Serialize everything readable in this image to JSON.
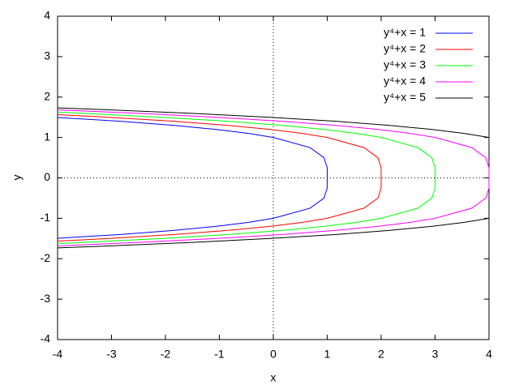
{
  "chart_data": {
    "type": "line",
    "x_label": "x",
    "y_label": "y",
    "xlim": [
      -4,
      4
    ],
    "ylim": [
      -4,
      4
    ],
    "xticks": [
      -4,
      -3,
      -2,
      -1,
      0,
      1,
      2,
      3,
      4
    ],
    "yticks": [
      -4,
      -3,
      -2,
      -1,
      0,
      1,
      2,
      3,
      4
    ],
    "zero_axes": true,
    "legend": "top-right",
    "series": [
      {
        "name": "y⁴+x = 1",
        "color": "#0000ff",
        "x": [
          -4,
          -2.84,
          -1.86,
          -1.07,
          -0.46,
          0,
          0.68,
          0.94,
          1.0,
          1,
          1.0,
          0.94,
          0.68,
          0,
          -0.46,
          -1.07,
          -1.86,
          -2.84,
          -4
        ],
        "values": [
          1.495,
          1.4,
          1.3,
          1.2,
          1.1,
          1.0,
          0.75,
          0.5,
          0.25,
          0,
          -0.25,
          -0.5,
          -0.75,
          -1.0,
          -1.1,
          -1.2,
          -1.3,
          -1.4,
          -1.495
        ]
      },
      {
        "name": "y⁴+x = 2",
        "color": "#ff0000",
        "x": [
          -4,
          -3.06,
          -1.84,
          -0.86,
          -0.07,
          0.54,
          1,
          1.68,
          1.94,
          2.0,
          2,
          2.0,
          1.94,
          1.68,
          1,
          0.54,
          -0.07,
          -0.86,
          -1.84,
          -3.06,
          -4
        ],
        "values": [
          1.565,
          1.5,
          1.4,
          1.3,
          1.2,
          1.1,
          1.0,
          0.75,
          0.5,
          0.25,
          0,
          -0.25,
          -0.5,
          -0.75,
          -1.0,
          -1.1,
          -1.2,
          -1.3,
          -1.4,
          -1.5,
          -1.565
        ]
      },
      {
        "name": "y⁴+x = 3",
        "color": "#00ff00",
        "x": [
          -4,
          -2.06,
          -0.84,
          0.14,
          0.93,
          1.54,
          2,
          2.68,
          2.94,
          3.0,
          3,
          3.0,
          2.94,
          2.68,
          2,
          1.54,
          0.93,
          0.14,
          -0.84,
          -2.06,
          -4
        ],
        "values": [
          1.627,
          1.5,
          1.4,
          1.3,
          1.2,
          1.1,
          1.0,
          0.75,
          0.5,
          0.25,
          0,
          -0.25,
          -0.5,
          -0.75,
          -1.0,
          -1.1,
          -1.2,
          -1.3,
          -1.4,
          -1.5,
          -1.627
        ]
      },
      {
        "name": "y⁴+x = 4",
        "color": "#ff00ff",
        "x": [
          -4,
          -2.55,
          -1.06,
          0.16,
          1.14,
          1.93,
          2.54,
          3,
          3.68,
          3.94,
          4.0,
          4,
          4.0,
          3.94,
          3.68,
          3,
          2.54,
          1.93,
          1.14,
          0.16,
          -1.06,
          -2.55,
          -4
        ],
        "values": [
          1.682,
          1.6,
          1.5,
          1.4,
          1.3,
          1.2,
          1.1,
          1.0,
          0.75,
          0.5,
          0.25,
          0,
          -0.25,
          -0.5,
          -0.75,
          -1.0,
          -1.1,
          -1.2,
          -1.3,
          -1.4,
          -1.5,
          -1.6,
          -1.682
        ]
      },
      {
        "name": "y⁴+x = 5",
        "color": "#000000",
        "x": [
          -4,
          -3.35,
          -1.55,
          -0.06,
          1.16,
          2.14,
          2.93,
          3.54,
          4,
          null,
          4,
          3.54,
          2.93,
          2.14,
          1.16,
          -0.06,
          -1.55,
          -3.35,
          -4
        ],
        "values": [
          1.732,
          1.7,
          1.6,
          1.5,
          1.4,
          1.3,
          1.2,
          1.1,
          1.0,
          null,
          -1.0,
          -1.1,
          -1.2,
          -1.3,
          -1.4,
          -1.5,
          -1.6,
          -1.7,
          -1.732
        ]
      }
    ]
  }
}
